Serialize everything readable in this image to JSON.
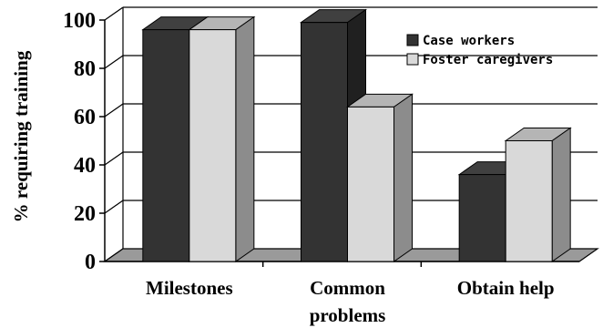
{
  "chart_data": {
    "type": "bar",
    "style": "3d-clustered",
    "title": "",
    "xlabel": "",
    "ylabel": "% requiring training",
    "ylim": [
      0,
      100
    ],
    "yticks": [
      "0",
      "20",
      "40",
      "60",
      "80",
      "100"
    ],
    "grid": true,
    "legend": "top-right",
    "categories": [
      {
        "lines": [
          "Milestones"
        ]
      },
      {
        "lines": [
          "Common",
          "problems"
        ]
      },
      {
        "lines": [
          "Obtain help"
        ]
      }
    ],
    "series": [
      {
        "name": "Case workers",
        "color": "#333333",
        "side": "#202020",
        "top": "#404040",
        "values": [
          96,
          99,
          36
        ]
      },
      {
        "name": "Foster caregivers",
        "color": "#d9d9d9",
        "side": "#8c8c8c",
        "top": "#b5b5b5",
        "values": [
          96,
          64,
          50
        ]
      }
    ]
  }
}
